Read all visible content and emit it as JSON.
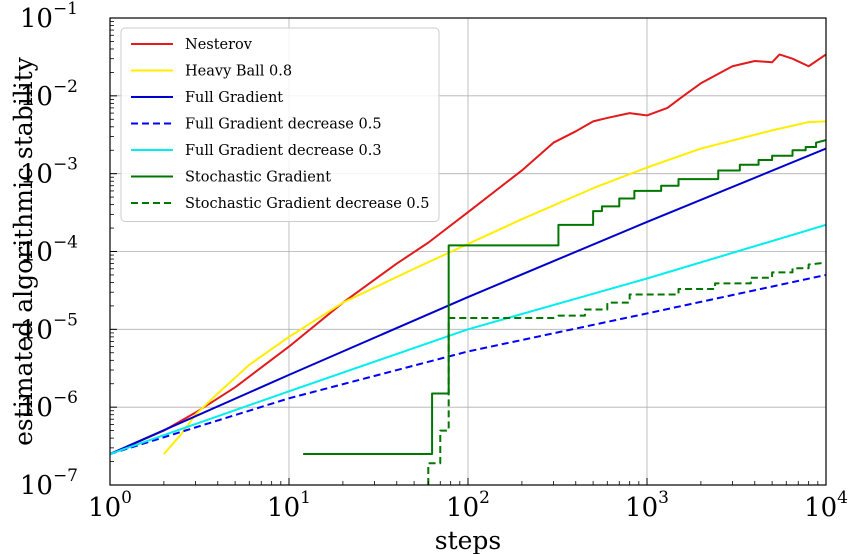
{
  "chart_data": {
    "type": "line",
    "title": "",
    "xlabel": "steps",
    "ylabel": "estimated algorithmic stability",
    "xscale": "log",
    "yscale": "log",
    "xlim": [
      1,
      10000
    ],
    "ylim": [
      1e-07,
      0.1
    ],
    "grid": true,
    "legend_position": "top-left",
    "x_ticks": [
      {
        "base": "10",
        "exp": "0",
        "value": 1
      },
      {
        "base": "10",
        "exp": "1",
        "value": 10
      },
      {
        "base": "10",
        "exp": "2",
        "value": 100
      },
      {
        "base": "10",
        "exp": "3",
        "value": 1000
      },
      {
        "base": "10",
        "exp": "4",
        "value": 10000
      }
    ],
    "y_ticks": [
      {
        "base": "10",
        "exp": "−7",
        "value": 1e-07
      },
      {
        "base": "10",
        "exp": "−6",
        "value": 1e-06
      },
      {
        "base": "10",
        "exp": "−5",
        "value": 1e-05
      },
      {
        "base": "10",
        "exp": "−4",
        "value": 0.0001
      },
      {
        "base": "10",
        "exp": "−3",
        "value": 0.001
      },
      {
        "base": "10",
        "exp": "−2",
        "value": 0.01
      },
      {
        "base": "10",
        "exp": "−1",
        "value": 0.1
      }
    ],
    "series": [
      {
        "name": "Nesterov",
        "color": "#e31a1c",
        "dash": "solid",
        "points": [
          [
            1,
            2.5e-07
          ],
          [
            2,
            5e-07
          ],
          [
            3,
            8.5e-07
          ],
          [
            5,
            1.8e-06
          ],
          [
            10,
            6e-06
          ],
          [
            20,
            2.2e-05
          ],
          [
            40,
            7e-05
          ],
          [
            60,
            0.00013
          ],
          [
            100,
            0.00032
          ],
          [
            200,
            0.0011
          ],
          [
            300,
            0.0025
          ],
          [
            400,
            0.0035
          ],
          [
            500,
            0.0047
          ],
          [
            600,
            0.0052
          ],
          [
            800,
            0.006
          ],
          [
            1000,
            0.0056
          ],
          [
            1300,
            0.007
          ],
          [
            1600,
            0.01
          ],
          [
            2000,
            0.0145
          ],
          [
            3000,
            0.024
          ],
          [
            4000,
            0.028
          ],
          [
            5000,
            0.027
          ],
          [
            5500,
            0.034
          ],
          [
            6500,
            0.03
          ],
          [
            8000,
            0.024
          ],
          [
            10000,
            0.034
          ]
        ]
      },
      {
        "name": "Heavy Ball 0.8",
        "color": "#ffee00",
        "dash": "solid",
        "points": [
          [
            2,
            2.5e-07
          ],
          [
            2.5,
            4.5e-07
          ],
          [
            3,
            8e-07
          ],
          [
            4,
            1.5e-06
          ],
          [
            6,
            3.5e-06
          ],
          [
            10,
            8e-06
          ],
          [
            20,
            2.2e-05
          ],
          [
            50,
            6e-05
          ],
          [
            100,
            0.000125
          ],
          [
            200,
            0.00026
          ],
          [
            500,
            0.00065
          ],
          [
            1000,
            0.0012
          ],
          [
            2000,
            0.0021
          ],
          [
            5000,
            0.0036
          ],
          [
            8000,
            0.0046
          ],
          [
            10000,
            0.0047
          ]
        ]
      },
      {
        "name": "Full Gradient",
        "color": "#0000cc",
        "dash": "solid",
        "points": [
          [
            1,
            2.5e-07
          ],
          [
            10,
            2.6e-06
          ],
          [
            100,
            2.6e-05
          ],
          [
            1000,
            0.00024
          ],
          [
            10000,
            0.0021
          ]
        ]
      },
      {
        "name": "Full Gradient decrease 0.5",
        "color": "#0000ff",
        "dash": "dashed",
        "points": [
          [
            1,
            2.5e-07
          ],
          [
            10,
            1.3e-06
          ],
          [
            100,
            5.2e-06
          ],
          [
            1000,
            1.6e-05
          ],
          [
            10000,
            5e-05
          ]
        ]
      },
      {
        "name": "Full Gradient decrease 0.3",
        "color": "#00eeee",
        "dash": "solid",
        "points": [
          [
            1,
            2.5e-07
          ],
          [
            10,
            1.6e-06
          ],
          [
            100,
            1e-05
          ],
          [
            1000,
            4.5e-05
          ],
          [
            10000,
            0.00022
          ]
        ]
      },
      {
        "name": "Stochastic Gradient",
        "color": "#007700",
        "dash": "solid",
        "points": [
          [
            12,
            2.5e-07
          ],
          [
            63,
            2.5e-07
          ],
          [
            63,
            1.5e-06
          ],
          [
            78,
            1.5e-06
          ],
          [
            78,
            0.00012
          ],
          [
            320,
            0.00012
          ],
          [
            320,
            0.00022
          ],
          [
            500,
            0.00022
          ],
          [
            500,
            0.00033
          ],
          [
            560,
            0.00033
          ],
          [
            560,
            0.00038
          ],
          [
            700,
            0.00038
          ],
          [
            700,
            0.00048
          ],
          [
            850,
            0.00048
          ],
          [
            850,
            0.0006
          ],
          [
            1200,
            0.0006
          ],
          [
            1200,
            0.0007
          ],
          [
            1500,
            0.0007
          ],
          [
            1500,
            0.00085
          ],
          [
            2500,
            0.00085
          ],
          [
            2500,
            0.0011
          ],
          [
            3300,
            0.0011
          ],
          [
            3300,
            0.0013
          ],
          [
            4200,
            0.0013
          ],
          [
            4200,
            0.0015
          ],
          [
            5000,
            0.0015
          ],
          [
            5000,
            0.0017
          ],
          [
            6500,
            0.0017
          ],
          [
            6500,
            0.002
          ],
          [
            7700,
            0.002
          ],
          [
            7700,
            0.0022
          ],
          [
            8800,
            0.0022
          ],
          [
            8800,
            0.0025
          ],
          [
            10000,
            0.0027
          ]
        ]
      },
      {
        "name": "Stochastic Gradient decrease 0.5",
        "color": "#007700",
        "dash": "dashed",
        "points": [
          [
            60,
            1e-07
          ],
          [
            60,
            1.9e-07
          ],
          [
            70,
            1.9e-07
          ],
          [
            70,
            5e-07
          ],
          [
            78,
            5e-07
          ],
          [
            78,
            1.4e-05
          ],
          [
            300,
            1.4e-05
          ],
          [
            320,
            1.5e-05
          ],
          [
            450,
            1.5e-05
          ],
          [
            450,
            1.8e-05
          ],
          [
            600,
            1.8e-05
          ],
          [
            600,
            2.2e-05
          ],
          [
            800,
            2.2e-05
          ],
          [
            800,
            2.8e-05
          ],
          [
            1500,
            2.8e-05
          ],
          [
            1500,
            3.3e-05
          ],
          [
            2400,
            3.3e-05
          ],
          [
            2400,
            3.9e-05
          ],
          [
            3800,
            3.9e-05
          ],
          [
            3800,
            4.6e-05
          ],
          [
            5000,
            4.6e-05
          ],
          [
            5000,
            5.4e-05
          ],
          [
            6500,
            5.4e-05
          ],
          [
            6500,
            6.1e-05
          ],
          [
            8000,
            6.1e-05
          ],
          [
            8000,
            6.8e-05
          ],
          [
            10000,
            7.2e-05
          ]
        ]
      }
    ]
  }
}
